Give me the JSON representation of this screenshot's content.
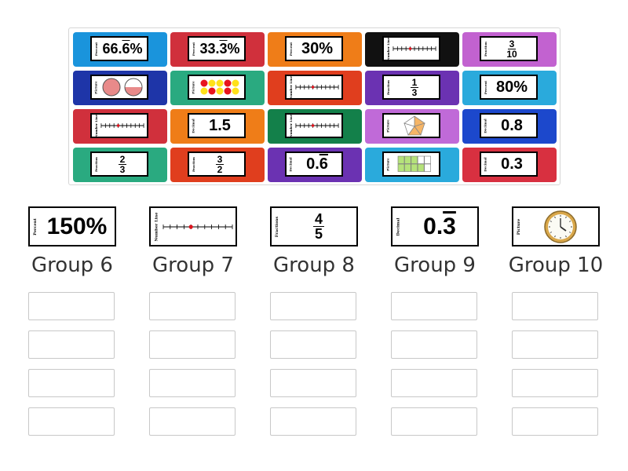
{
  "colors": {
    "blue": "#1a94dc",
    "red": "#d0303c",
    "orange": "#ef7d18",
    "black": "#111111",
    "violet": "#c262d0",
    "navy": "#1e35a8",
    "green": "#2aaa80",
    "vermilion": "#e03e1e",
    "purple": "#6b32b2",
    "lightblue": "#2aaadc",
    "darkgreen": "#13804a",
    "lavender": "#c06ad8",
    "royal": "#1c48cc",
    "crimson": "#d83040"
  },
  "pool": {
    "tiles": [
      {
        "color": "blue",
        "side": "Percent",
        "kind": "text",
        "text": "66.6%",
        "size": "mid"
      },
      {
        "color": "red",
        "side": "Percent",
        "kind": "text",
        "text": "33.3%",
        "size": "mid"
      },
      {
        "color": "orange",
        "side": "Percent",
        "kind": "text",
        "text": "30%",
        "size": "big"
      },
      {
        "color": "black",
        "side": "Number Line",
        "kind": "numberline"
      },
      {
        "color": "violet",
        "side": "Fraction",
        "kind": "fraction",
        "num": "3",
        "den": "10"
      },
      {
        "color": "navy",
        "side": "Picture",
        "kind": "circles"
      },
      {
        "color": "green",
        "side": "Picture",
        "kind": "dots"
      },
      {
        "color": "vermilion",
        "side": "Number Line",
        "kind": "numberline"
      },
      {
        "color": "purple",
        "side": "Fraction",
        "kind": "fraction",
        "num": "1",
        "den": "3"
      },
      {
        "color": "lightblue",
        "side": "Percent",
        "kind": "text",
        "text": "80%",
        "size": "big"
      },
      {
        "color": "red",
        "side": "Number Line",
        "kind": "numberline"
      },
      {
        "color": "orange",
        "side": "Decimal",
        "kind": "text",
        "text": "1.5",
        "size": "big"
      },
      {
        "color": "darkgreen",
        "side": "Number Line",
        "kind": "numberline"
      },
      {
        "color": "lavender",
        "side": "Picture",
        "kind": "pentagon"
      },
      {
        "color": "royal",
        "side": "Decimal",
        "kind": "text",
        "text": "0.8",
        "size": "big"
      },
      {
        "color": "green",
        "side": "Fraction",
        "kind": "fraction",
        "num": "2",
        "den": "3"
      },
      {
        "color": "vermilion",
        "side": "Fraction",
        "kind": "fraction",
        "num": "3",
        "den": "2"
      },
      {
        "color": "purple",
        "side": "Decimal",
        "kind": "text",
        "text": "0.6",
        "size": "big"
      },
      {
        "color": "lightblue",
        "side": "Picture",
        "kind": "grid"
      },
      {
        "color": "crimson",
        "side": "Decimal",
        "kind": "text",
        "text": "0.3",
        "size": "big"
      }
    ]
  },
  "groups": [
    {
      "label": "Group 6",
      "side": "Percent",
      "kind": "text",
      "text": "150%"
    },
    {
      "label": "Group 7",
      "side": "Number Line",
      "kind": "numberline"
    },
    {
      "label": "Group 8",
      "side": "Fractions",
      "kind": "fraction",
      "num": "4",
      "den": "5"
    },
    {
      "label": "Group 9",
      "side": "Decimal",
      "kind": "text",
      "text": "0.3"
    },
    {
      "label": "Group 10",
      "side": "Picture",
      "kind": "clock"
    }
  ],
  "slots_per_group": 4
}
